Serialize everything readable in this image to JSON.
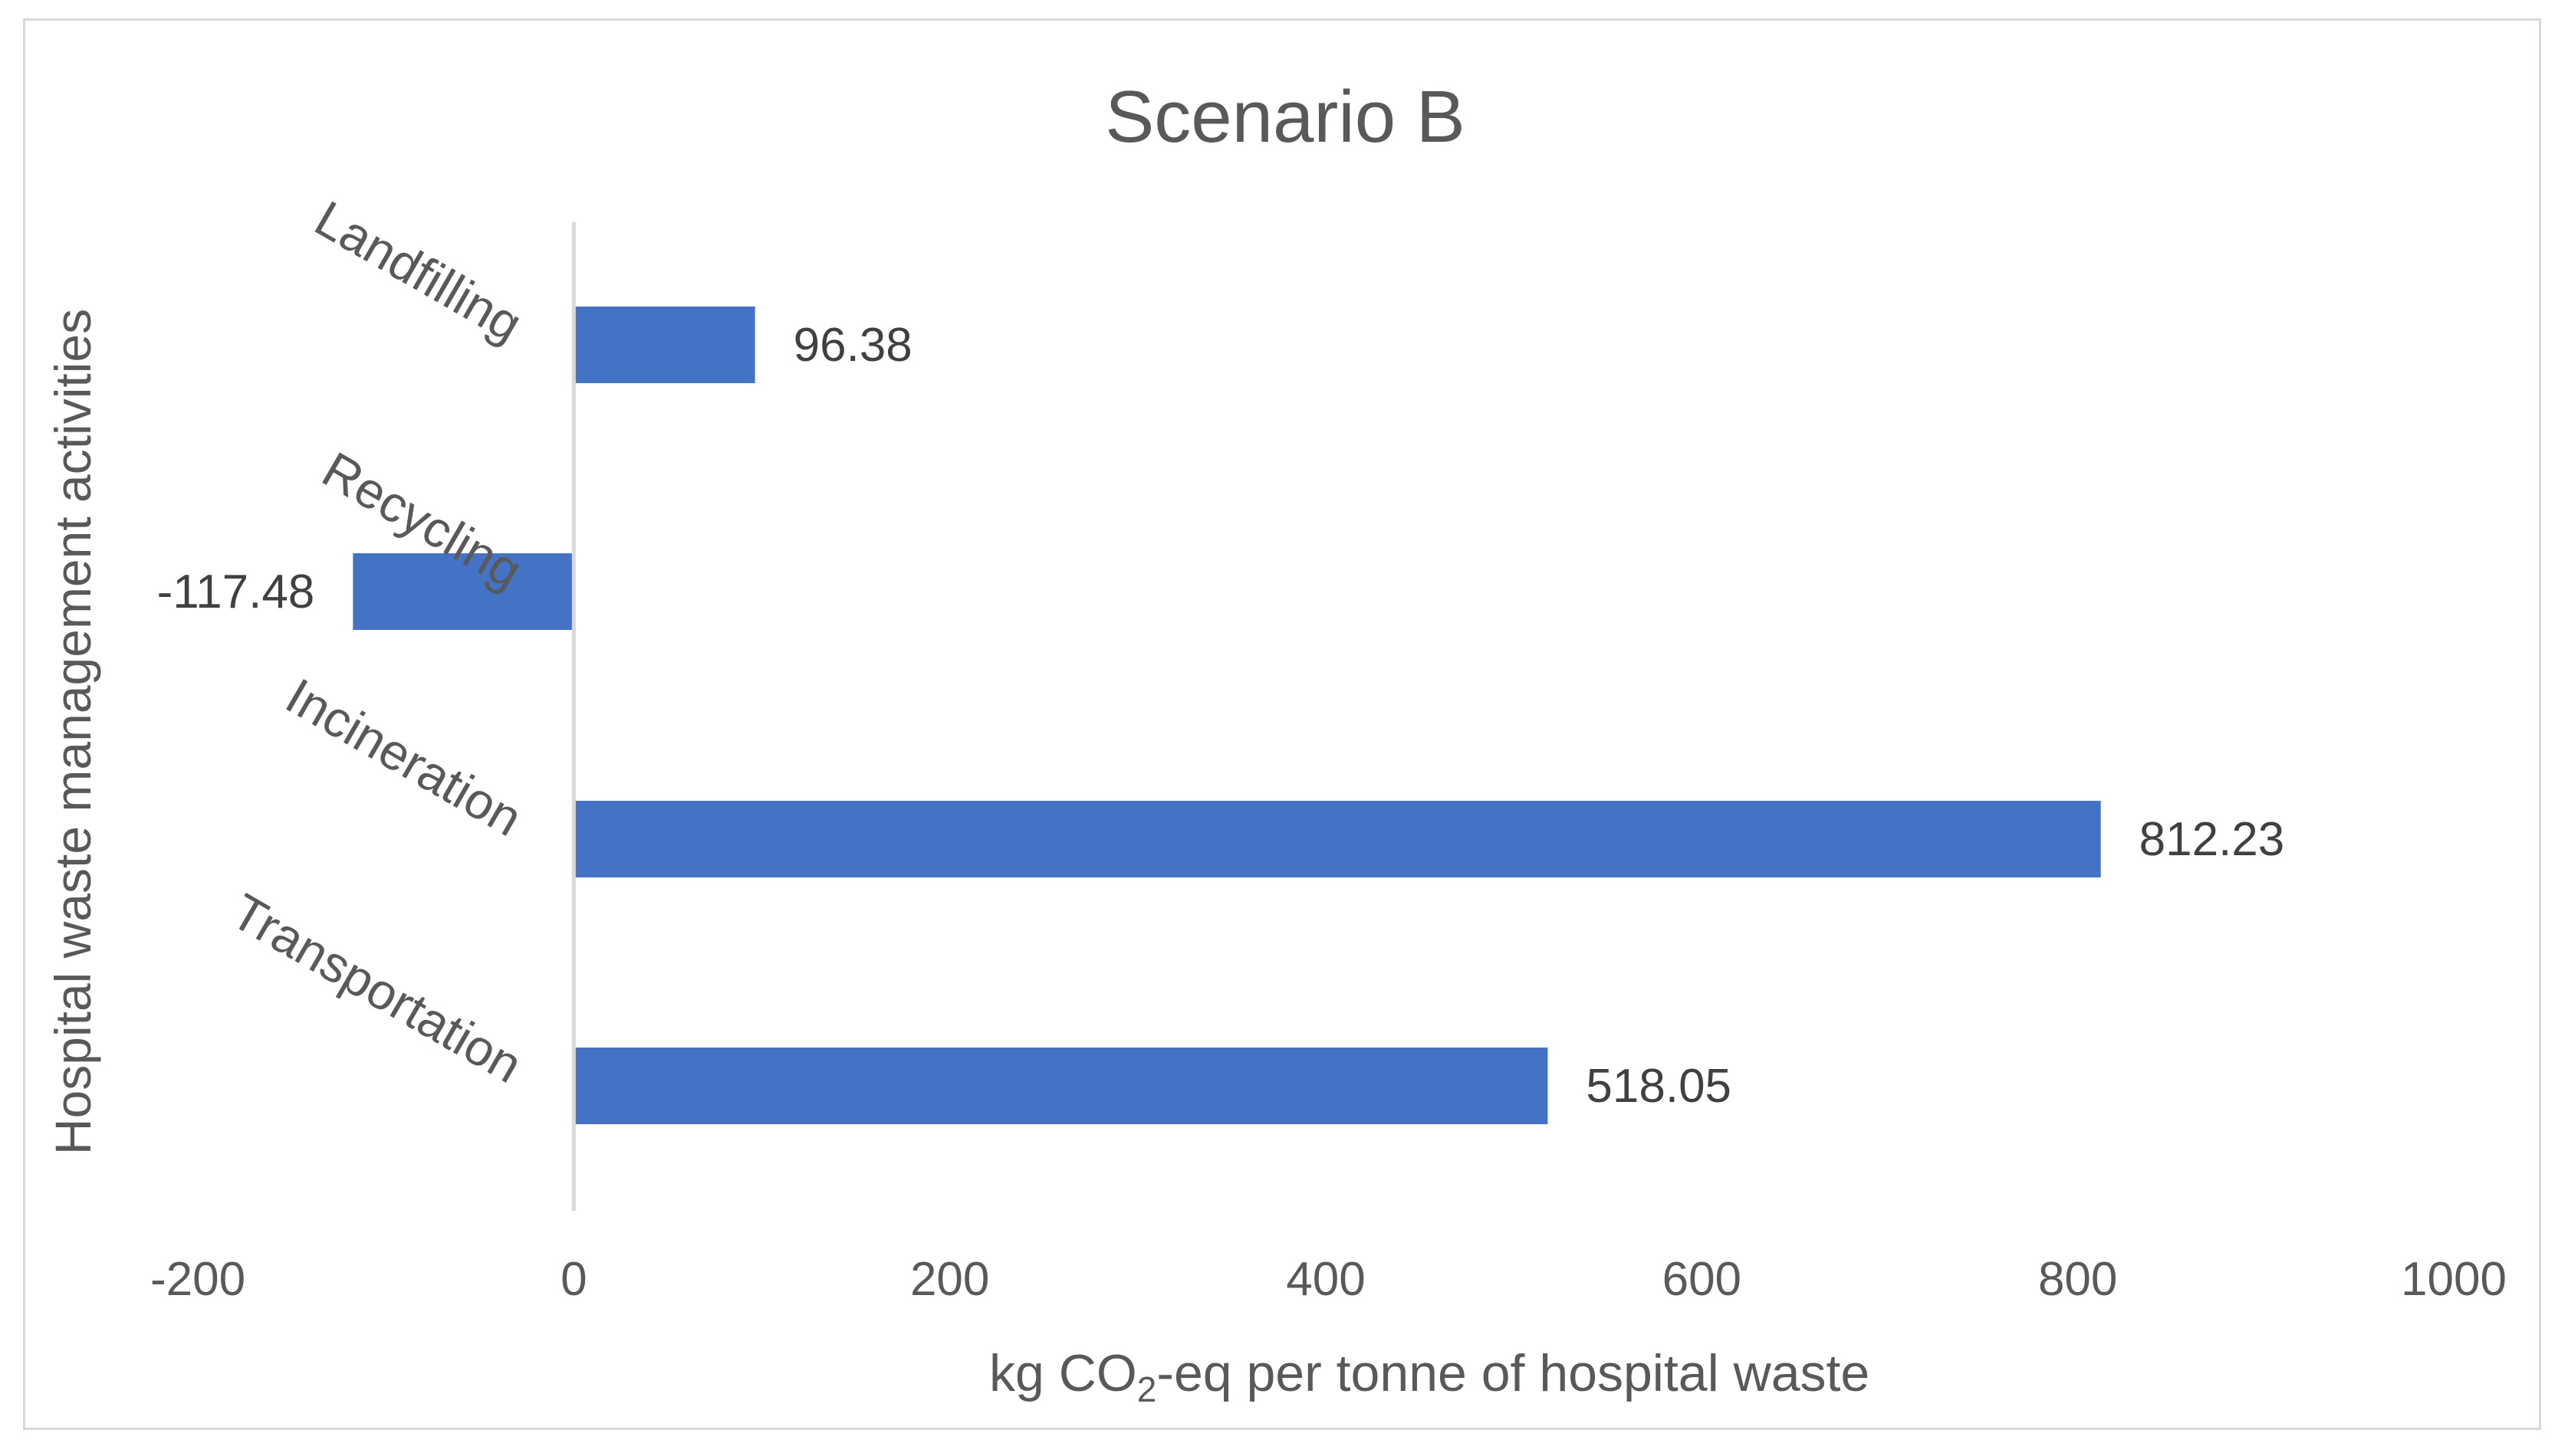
{
  "chart_data": {
    "type": "bar",
    "orientation": "horizontal",
    "title": "Scenario B",
    "xlabel_prefix": "kg CO",
    "xlabel_subscript": "2",
    "xlabel_suffix": "-eq per tonne of hospital waste",
    "ylabel": "Hospital waste management activities",
    "categories": [
      "Landfilling",
      "Recycling",
      "Incineration",
      "Transportation"
    ],
    "values": [
      96.38,
      -117.48,
      812.23,
      518.05
    ],
    "value_labels": [
      "96.38",
      "-117.48",
      "812.23",
      "518.05"
    ],
    "xlim": [
      -200,
      1000
    ],
    "xticks": [
      -200,
      0,
      200,
      400,
      600,
      800,
      1000
    ],
    "xtick_labels": [
      "-200",
      "0",
      "200",
      "400",
      "600",
      "800",
      "1000"
    ],
    "grid": false,
    "bar_color": "#4472c4"
  }
}
